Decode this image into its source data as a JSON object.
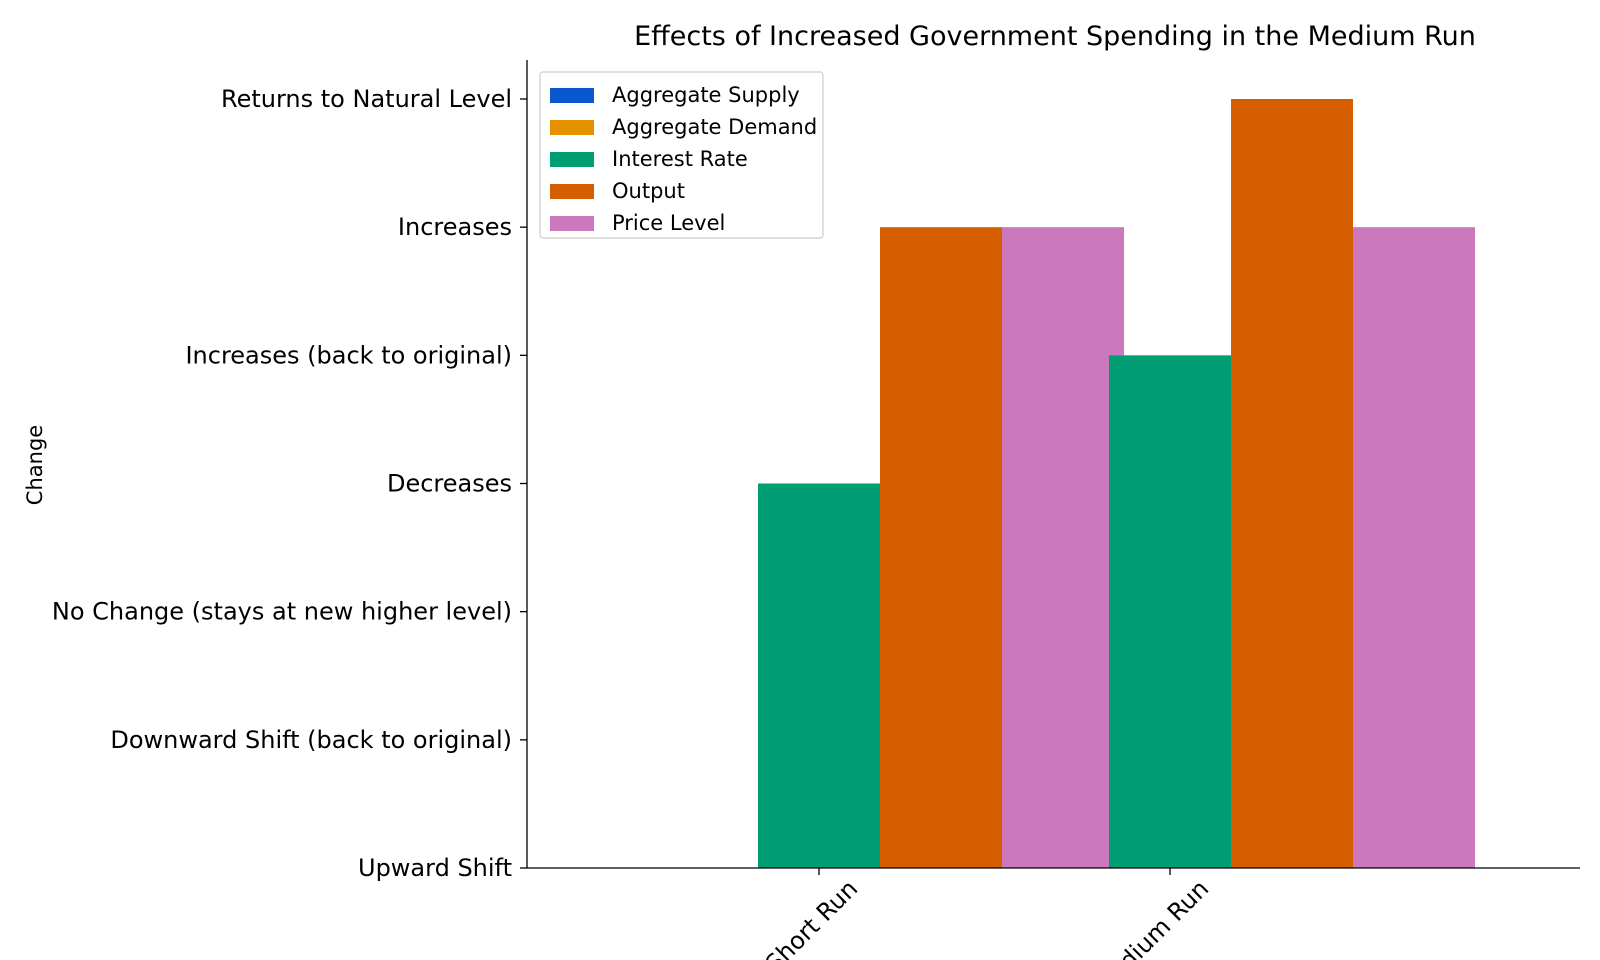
{
  "chart_data": {
    "type": "bar",
    "title": "Effects of Increased Government Spending in the Medium Run",
    "xlabel": "",
    "ylabel": "Change",
    "categories": [
      "Short Run",
      "Medium Run"
    ],
    "y_categories": [
      "Upward Shift",
      "Downward Shift (back to original)",
      "No Change (stays at new higher level)",
      "Decreases",
      "Increases (back to original)",
      "Increases",
      "Returns to Natural Level"
    ],
    "series": [
      {
        "name": "Aggregate Supply",
        "color": "#0b57d0",
        "values": [
          0,
          0
        ]
      },
      {
        "name": "Aggregate Demand",
        "color": "#e69100",
        "values": [
          0,
          0
        ]
      },
      {
        "name": "Interest Rate",
        "color": "#029e73",
        "values": [
          3,
          4
        ]
      },
      {
        "name": "Output",
        "color": "#d55e00",
        "values": [
          5,
          6
        ]
      },
      {
        "name": "Price Level",
        "color": "#cc78bc",
        "values": [
          5,
          5
        ]
      }
    ],
    "ylim": [
      0,
      6
    ],
    "legend_position": "top-left",
    "grid": false
  }
}
